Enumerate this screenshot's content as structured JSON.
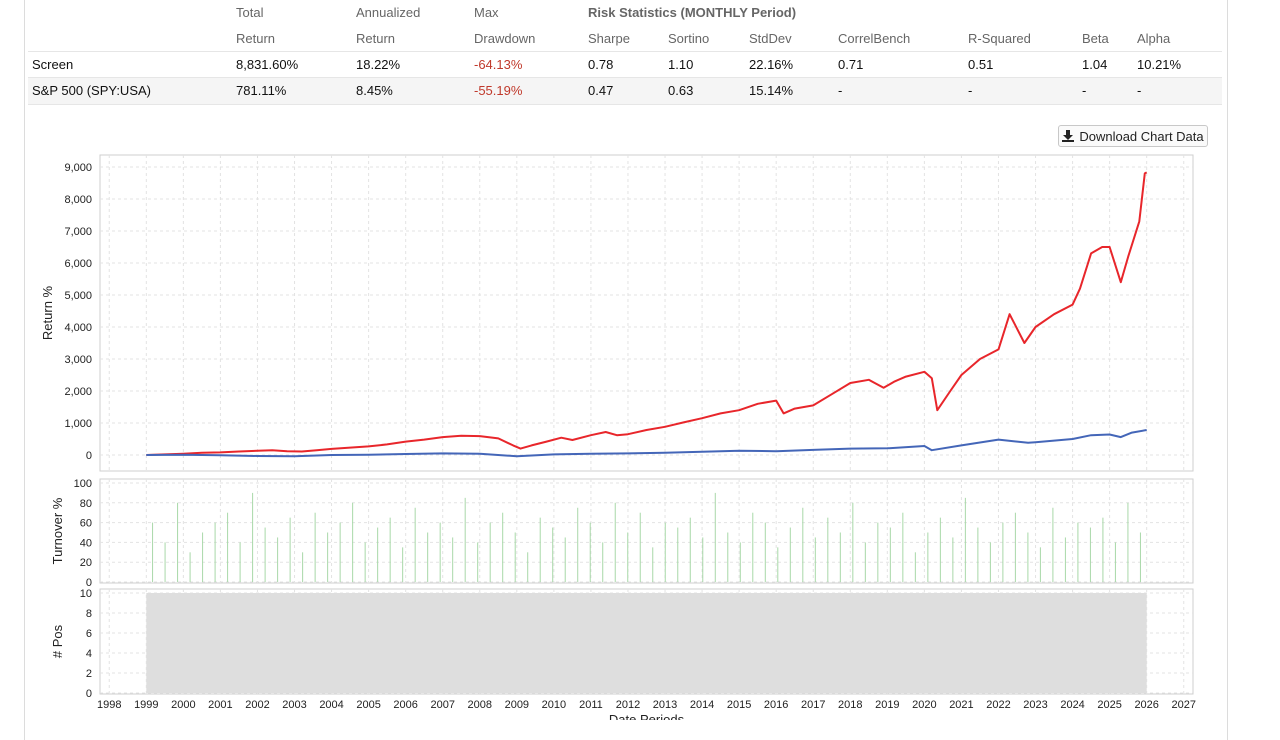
{
  "stats": {
    "group_title": "Risk Statistics (MONTHLY Period)",
    "headers": [
      {
        "line1": "Total",
        "line2": "Return"
      },
      {
        "line1": "Annualized",
        "line2": "Return"
      },
      {
        "line1": "Max",
        "line2": "Drawdown"
      },
      {
        "line1": "",
        "line2": "Sharpe"
      },
      {
        "line1": "",
        "line2": "Sortino"
      },
      {
        "line1": "",
        "line2": "StdDev"
      },
      {
        "line1": "",
        "line2": "CorrelBench"
      },
      {
        "line1": "",
        "line2": "R-Squared"
      },
      {
        "line1": "",
        "line2": "Beta"
      },
      {
        "line1": "",
        "line2": "Alpha"
      }
    ],
    "rows": [
      {
        "name": "Screen",
        "values": [
          "8,831.60%",
          "18.22%",
          "-64.13%",
          "0.78",
          "1.10",
          "22.16%",
          "0.71",
          "0.51",
          "1.04",
          "10.21%"
        ]
      },
      {
        "name": "S&P 500 (SPY:USA)",
        "values": [
          "781.11%",
          "8.45%",
          "-55.19%",
          "0.47",
          "0.63",
          "15.14%",
          "-",
          "-",
          "-",
          "-"
        ]
      }
    ]
  },
  "download_button": {
    "label": "Download Chart Data",
    "icon": "download-icon"
  },
  "chart_data": [
    {
      "type": "line",
      "ylabel": "Return %",
      "ylim": [
        0,
        9000
      ],
      "yticks": [
        "0",
        "1,000",
        "2,000",
        "3,000",
        "4,000",
        "5,000",
        "6,000",
        "7,000",
        "8,000",
        "9,000"
      ],
      "grid": true,
      "series": [
        {
          "name": "Screen",
          "color": "#e8262b",
          "points": [
            [
              1999.0,
              0
            ],
            [
              1999.5,
              20
            ],
            [
              2000.0,
              40
            ],
            [
              2000.5,
              70
            ],
            [
              2001.0,
              80
            ],
            [
              2001.5,
              110
            ],
            [
              2002.0,
              130
            ],
            [
              2002.4,
              150
            ],
            [
              2002.8,
              120
            ],
            [
              2003.2,
              110
            ],
            [
              2003.6,
              150
            ],
            [
              2004.0,
              190
            ],
            [
              2004.5,
              230
            ],
            [
              2005.0,
              270
            ],
            [
              2005.5,
              330
            ],
            [
              2006.0,
              420
            ],
            [
              2006.5,
              480
            ],
            [
              2007.0,
              560
            ],
            [
              2007.5,
              600
            ],
            [
              2008.0,
              590
            ],
            [
              2008.5,
              520
            ],
            [
              2008.9,
              300
            ],
            [
              2009.1,
              200
            ],
            [
              2009.4,
              300
            ],
            [
              2009.8,
              420
            ],
            [
              2010.2,
              540
            ],
            [
              2010.5,
              470
            ],
            [
              2011.0,
              620
            ],
            [
              2011.4,
              720
            ],
            [
              2011.7,
              620
            ],
            [
              2012.0,
              650
            ],
            [
              2012.5,
              780
            ],
            [
              2013.0,
              880
            ],
            [
              2013.5,
              1020
            ],
            [
              2014.0,
              1150
            ],
            [
              2014.5,
              1300
            ],
            [
              2015.0,
              1400
            ],
            [
              2015.5,
              1600
            ],
            [
              2016.0,
              1700
            ],
            [
              2016.2,
              1300
            ],
            [
              2016.5,
              1450
            ],
            [
              2017.0,
              1550
            ],
            [
              2017.5,
              1900
            ],
            [
              2018.0,
              2250
            ],
            [
              2018.5,
              2350
            ],
            [
              2018.9,
              2100
            ],
            [
              2019.2,
              2300
            ],
            [
              2019.5,
              2450
            ],
            [
              2020.0,
              2600
            ],
            [
              2020.2,
              2400
            ],
            [
              2020.35,
              1400
            ],
            [
              2020.7,
              2000
            ],
            [
              2021.0,
              2500
            ],
            [
              2021.5,
              3000
            ],
            [
              2022.0,
              3300
            ],
            [
              2022.3,
              4400
            ],
            [
              2022.7,
              3500
            ],
            [
              2023.0,
              4000
            ],
            [
              2023.5,
              4400
            ],
            [
              2024.0,
              4700
            ],
            [
              2024.2,
              5200
            ],
            [
              2024.5,
              6300
            ],
            [
              2024.8,
              6500
            ],
            [
              2025.0,
              6500
            ],
            [
              2025.3,
              5400
            ],
            [
              2025.5,
              6200
            ],
            [
              2025.8,
              7300
            ],
            [
              2025.95,
              8800
            ],
            [
              2026.0,
              8830
            ]
          ]
        },
        {
          "name": "S&P 500 (SPY:USA)",
          "color": "#4466b8",
          "points": [
            [
              1999.0,
              0
            ],
            [
              2000.0,
              10
            ],
            [
              2001.0,
              -10
            ],
            [
              2002.0,
              -30
            ],
            [
              2003.0,
              -40
            ],
            [
              2004.0,
              0
            ],
            [
              2005.0,
              10
            ],
            [
              2006.0,
              30
            ],
            [
              2007.0,
              50
            ],
            [
              2008.0,
              40
            ],
            [
              2009.0,
              -40
            ],
            [
              2010.0,
              20
            ],
            [
              2011.0,
              40
            ],
            [
              2012.0,
              50
            ],
            [
              2013.0,
              70
            ],
            [
              2014.0,
              100
            ],
            [
              2015.0,
              130
            ],
            [
              2016.0,
              120
            ],
            [
              2017.0,
              160
            ],
            [
              2018.0,
              200
            ],
            [
              2019.0,
              210
            ],
            [
              2020.0,
              280
            ],
            [
              2020.2,
              150
            ],
            [
              2021.0,
              300
            ],
            [
              2022.0,
              480
            ],
            [
              2022.8,
              380
            ],
            [
              2023.0,
              400
            ],
            [
              2024.0,
              500
            ],
            [
              2024.5,
              620
            ],
            [
              2025.0,
              640
            ],
            [
              2025.3,
              560
            ],
            [
              2025.6,
              700
            ],
            [
              2026.0,
              781
            ]
          ]
        }
      ]
    },
    {
      "type": "bar",
      "ylabel": "Turnover %",
      "ylim": [
        0,
        100
      ],
      "yticks": [
        "0",
        "20",
        "40",
        "60",
        "80",
        "100"
      ],
      "color": "#a8d8a8",
      "start": 1999.0,
      "end": 2026.0,
      "values": [
        60,
        40,
        80,
        30,
        50,
        60,
        70,
        40,
        90,
        55,
        45,
        65,
        30,
        70,
        50,
        60,
        80,
        40,
        55,
        65,
        35,
        75,
        50,
        60,
        45,
        85,
        40,
        60,
        70,
        50,
        30,
        65,
        55,
        45,
        75,
        60,
        40,
        80,
        50,
        70,
        35,
        60,
        55,
        65,
        45,
        90,
        50,
        40,
        70,
        60,
        35,
        55,
        75,
        45,
        65,
        50,
        80,
        40,
        60,
        55,
        70,
        30,
        50,
        65,
        45,
        85,
        55,
        40,
        60,
        70,
        50,
        35,
        75,
        45,
        60,
        55,
        65,
        40,
        80,
        50
      ]
    },
    {
      "type": "area",
      "ylabel": "# Pos",
      "ylim": [
        0,
        10
      ],
      "yticks": [
        "0",
        "2",
        "4",
        "6",
        "8",
        "10"
      ],
      "xlabel": "Date Periods",
      "color": "#dedede",
      "start": 1999.0,
      "end": 2026.0,
      "value": 10,
      "xticks": [
        "1998",
        "1999",
        "2000",
        "2001",
        "2002",
        "2003",
        "2004",
        "2005",
        "2006",
        "2007",
        "2008",
        "2009",
        "2010",
        "2011",
        "2012",
        "2013",
        "2014",
        "2015",
        "2016",
        "2017",
        "2018",
        "2019",
        "2020",
        "2021",
        "2022",
        "2023",
        "2024",
        "2025",
        "2026",
        "2027"
      ]
    }
  ]
}
